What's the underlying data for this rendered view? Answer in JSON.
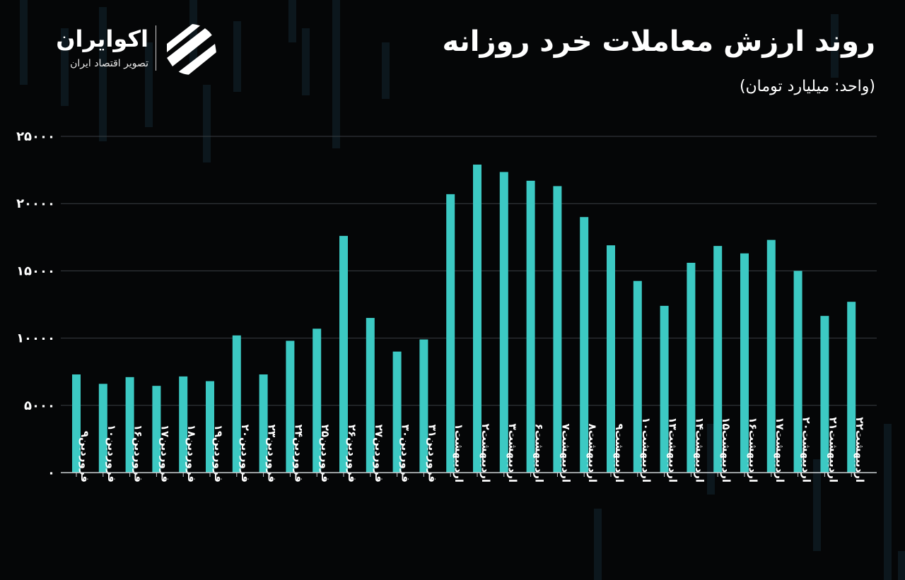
{
  "header": {
    "title": "روند ارزش معاملات خرد روزانه",
    "unit": "(واحد: میلیارد تومان)"
  },
  "brand": {
    "name": "اکوایران",
    "tagline": "تصویر اقتصاد ایران",
    "logo_icon": "ecoiran-stripes-icon"
  },
  "colors": {
    "bar": "#3cc9c3",
    "grid": "#3a3f44",
    "axis": "#cfd3d6",
    "background": "#050607"
  },
  "chart_data": {
    "type": "bar",
    "categories": [
      "فروردین۹",
      "فروردین۱۰",
      "فروردین۱۶",
      "فروردین۱۷",
      "فروردین۱۸",
      "فروردین۱۹",
      "فروردین۲۰",
      "فروردین۲۳",
      "فروردین۲۴",
      "فروردین۲۵",
      "فروردین۲۶",
      "فروردین۲۷",
      "فروردین۳۰",
      "فروردین۳۱",
      "اردیبهشت۱",
      "اردیبهشت۲",
      "اردیبهشت۳",
      "اردیبهشت۶",
      "اردیبهشت۷",
      "اردیبهشت۸",
      "اردیبهشت۹",
      "اردیبهشت۱۰",
      "اردیبهشت۱۳",
      "اردیبهشت۱۴",
      "اردیبهشت۱۵",
      "اردیبهشت۱۶",
      "اردیبهشت۱۷",
      "اردیبهشت۲۰",
      "اردیبهشت۲۱",
      "اردیبهشت۲۲"
    ],
    "values": [
      7300,
      6600,
      7100,
      6450,
      7150,
      6800,
      10200,
      7300,
      9800,
      10700,
      17600,
      11500,
      9000,
      9900,
      20700,
      22900,
      22350,
      21700,
      21300,
      19000,
      16900,
      14250,
      12400,
      15600,
      16850,
      16300,
      17300,
      15000,
      11650,
      12700
    ],
    "ylim": [
      0,
      25000
    ],
    "yticks": [
      0,
      5000,
      10000,
      15000,
      20000,
      25000
    ],
    "ytick_labels": [
      "۰",
      "۵۰۰۰",
      "۱۰۰۰۰",
      "۱۵۰۰۰",
      "۲۰۰۰۰",
      "۲۵۰۰۰"
    ],
    "grid": true,
    "title": "روند ارزش معاملات خرد روزانه",
    "ylabel": "(واحد: میلیارد تومان)",
    "xlabel": ""
  }
}
